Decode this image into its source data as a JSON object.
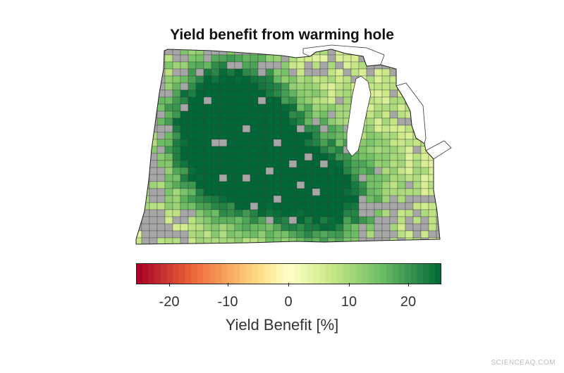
{
  "title": "Yield benefit from warming hole",
  "colorbar": {
    "label": "Yield Benefit [%]",
    "ticks": [
      "-20",
      "-10",
      "0",
      "10",
      "20"
    ],
    "tick_values": [
      -20,
      -10,
      0,
      10,
      20
    ],
    "range": [
      -25,
      25
    ],
    "colormap": "red-yellow-green"
  },
  "map": {
    "region": "US Midwest counties",
    "no_data_color": "#a6a6a6",
    "border_color": "#333333"
  },
  "watermark": "SCIENCEAQ.COM"
}
